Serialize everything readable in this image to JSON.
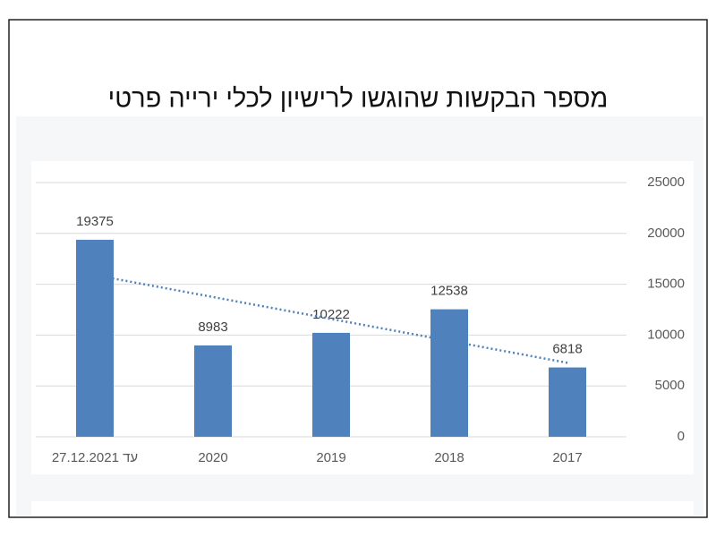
{
  "chart_data": {
    "type": "bar",
    "title": "מספר הבקשות שהוגשו לרישיון לכלי ירייה פרטי",
    "categories": [
      "עד 27.12.2021",
      "2020",
      "2019",
      "2018",
      "2017"
    ],
    "values": [
      19375,
      8983,
      10222,
      12538,
      6818
    ],
    "color": "#4f81bd",
    "ylim": [
      0,
      25000
    ],
    "yticks": [
      0,
      5000,
      10000,
      15000,
      20000,
      25000
    ],
    "grid": true,
    "trendline": "linear"
  }
}
